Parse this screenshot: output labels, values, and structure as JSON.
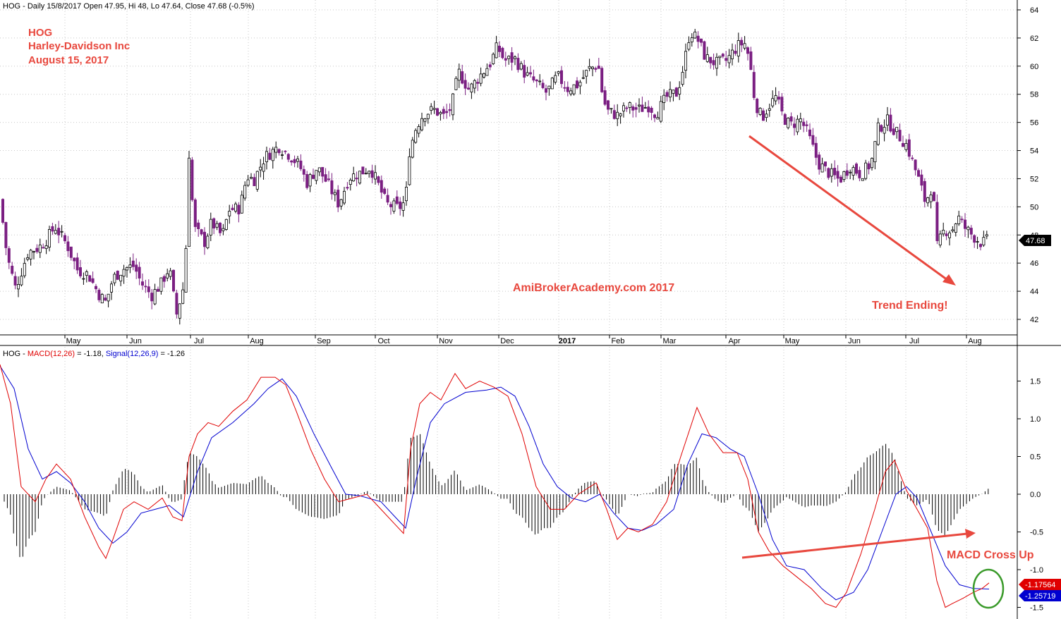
{
  "header": {
    "price_line": "HOG - Daily 15/8/2017 Open 47.95, Hi 48, Lo 47.64, Close 47.68 (-0.5%)",
    "macd_prefix": "HOG - ",
    "macd_label": "MACD(12,26)",
    "macd_value": " = -1.18, ",
    "signal_label": "Signal(12,26,9)",
    "signal_value": " = -1.26"
  },
  "title_block": {
    "ticker": "HOG",
    "company": "Harley-Davidson Inc",
    "date": "August 15, 2017"
  },
  "watermark": "AmiBrokerAcademy.com  2017",
  "annotations": {
    "trend_ending": "Trend Ending!",
    "macd_cross_up": "MACD Cross Up"
  },
  "badges": {
    "price_last": "47.68",
    "macd_last": "-1.17564",
    "signal_last": "-1.25719"
  },
  "colors": {
    "up_candle": "#000000",
    "down_candle": "#7b1f82",
    "macd_line": "#e00000",
    "signal_line": "#0000d0",
    "histogram": "#000000",
    "annotation": "#e8483e",
    "circle": "#3a9a2a",
    "grid": "#c8c8c8"
  },
  "chart_data": [
    {
      "type": "candlestick",
      "title": "HOG - Daily",
      "x_labels": [
        "May",
        "Jun",
        "Jul",
        "Aug",
        "Sep",
        "Oct",
        "Nov",
        "Dec",
        "2017",
        "Feb",
        "Mar",
        "Apr",
        "May",
        "Jun",
        "Jul",
        "Aug"
      ],
      "y_ticks": [
        42,
        44,
        46,
        48,
        50,
        52,
        54,
        56,
        58,
        60,
        62,
        64
      ],
      "ylim": [
        41,
        64.8
      ],
      "last_close": 47.68,
      "close_path": [
        [
          0,
          50.5
        ],
        [
          10,
          46.5
        ],
        [
          22,
          44.2
        ],
        [
          40,
          46.8
        ],
        [
          55,
          47.1
        ],
        [
          65,
          47.6
        ],
        [
          78,
          48.6
        ],
        [
          95,
          47.3
        ],
        [
          110,
          45.5
        ],
        [
          125,
          45.2
        ],
        [
          140,
          43.8
        ],
        [
          150,
          43.2
        ],
        [
          160,
          44.9
        ],
        [
          175,
          45.6
        ],
        [
          190,
          45.8
        ],
        [
          200,
          44.6
        ],
        [
          215,
          43.7
        ],
        [
          228,
          44.5
        ],
        [
          240,
          45.7
        ],
        [
          250,
          42.3
        ],
        [
          262,
          44.7
        ],
        [
          268,
          53.8
        ],
        [
          275,
          48.5
        ],
        [
          290,
          47.5
        ],
        [
          300,
          48.9
        ],
        [
          315,
          47.9
        ],
        [
          325,
          49.8
        ],
        [
          340,
          49.9
        ],
        [
          350,
          52.2
        ],
        [
          360,
          51.9
        ],
        [
          375,
          53.5
        ],
        [
          395,
          54.3
        ],
        [
          410,
          53.7
        ],
        [
          425,
          52.9
        ],
        [
          435,
          51.7
        ],
        [
          450,
          52.8
        ],
        [
          465,
          51.6
        ],
        [
          480,
          50.2
        ],
        [
          495,
          52.1
        ],
        [
          510,
          52.4
        ],
        [
          525,
          52.8
        ],
        [
          535,
          51.7
        ],
        [
          548,
          50.2
        ],
        [
          565,
          49.9
        ],
        [
          575,
          50.4
        ],
        [
          580,
          53.9
        ],
        [
          590,
          55.7
        ],
        [
          600,
          56.6
        ],
        [
          615,
          56.9
        ],
        [
          630,
          56.4
        ],
        [
          640,
          57.1
        ],
        [
          650,
          59.6
        ],
        [
          665,
          58.3
        ],
        [
          680,
          59.3
        ],
        [
          695,
          60.2
        ],
        [
          705,
          61.4
        ],
        [
          715,
          60.4
        ],
        [
          730,
          60.5
        ],
        [
          745,
          59.4
        ],
        [
          760,
          58.8
        ],
        [
          775,
          58.1
        ],
        [
          790,
          59.3
        ],
        [
          805,
          58.4
        ],
        [
          820,
          58.7
        ],
        [
          835,
          59.8
        ],
        [
          848,
          60.1
        ],
        [
          855,
          57.6
        ],
        [
          862,
          56.8
        ],
        [
          875,
          56.5
        ],
        [
          890,
          57.1
        ],
        [
          905,
          56.9
        ],
        [
          920,
          57.2
        ],
        [
          930,
          56.6
        ],
        [
          945,
          57.8
        ],
        [
          960,
          58.1
        ],
        [
          970,
          60.2
        ],
        [
          978,
          62.5
        ],
        [
          990,
          61.8
        ],
        [
          1000,
          60.6
        ],
        [
          1015,
          60.2
        ],
        [
          1030,
          60.4
        ],
        [
          1045,
          61.4
        ],
        [
          1055,
          61.7
        ],
        [
          1062,
          60.6
        ],
        [
          1070,
          57.5
        ],
        [
          1080,
          56.3
        ],
        [
          1090,
          57.2
        ],
        [
          1100,
          57.8
        ],
        [
          1110,
          56.4
        ],
        [
          1120,
          55.8
        ],
        [
          1135,
          56.2
        ],
        [
          1145,
          55.2
        ],
        [
          1160,
          53.1
        ],
        [
          1175,
          52.4
        ],
        [
          1190,
          51.9
        ],
        [
          1205,
          52.9
        ],
        [
          1220,
          52.3
        ],
        [
          1235,
          53.1
        ],
        [
          1245,
          55.6
        ],
        [
          1258,
          56.1
        ],
        [
          1270,
          55.3
        ],
        [
          1285,
          54.4
        ],
        [
          1300,
          52.3
        ],
        [
          1312,
          50.3
        ],
        [
          1322,
          51.6
        ],
        [
          1328,
          47.1
        ],
        [
          1338,
          48.3
        ],
        [
          1350,
          48.4
        ],
        [
          1358,
          49.3
        ],
        [
          1368,
          48.5
        ],
        [
          1380,
          47.9
        ],
        [
          1392,
          47.4
        ],
        [
          1402,
          47.68
        ]
      ]
    },
    {
      "type": "line",
      "title": "HOG - MACD(12,26), Signal(12,26,9)",
      "y_ticks": [
        -1.5,
        -1.0,
        -0.5,
        0.0,
        0.5,
        1.0,
        1.5
      ],
      "ylim": [
        -1.62,
        1.72
      ],
      "series": [
        {
          "name": "MACD(12,26)",
          "last": -1.17564,
          "points": [
            [
              0,
              1.72
            ],
            [
              15,
              1.2
            ],
            [
              30,
              0.1
            ],
            [
              50,
              -0.1
            ],
            [
              65,
              0.2
            ],
            [
              80,
              0.4
            ],
            [
              100,
              0.2
            ],
            [
              120,
              -0.3
            ],
            [
              140,
              -0.7
            ],
            [
              150,
              -0.85
            ],
            [
              160,
              -0.6
            ],
            [
              175,
              -0.2
            ],
            [
              190,
              -0.1
            ],
            [
              210,
              -0.2
            ],
            [
              230,
              -0.05
            ],
            [
              245,
              -0.3
            ],
            [
              258,
              -0.35
            ],
            [
              268,
              0.5
            ],
            [
              280,
              0.8
            ],
            [
              295,
              0.95
            ],
            [
              310,
              0.9
            ],
            [
              330,
              1.1
            ],
            [
              350,
              1.25
            ],
            [
              370,
              1.55
            ],
            [
              390,
              1.55
            ],
            [
              405,
              1.45
            ],
            [
              420,
              1.1
            ],
            [
              440,
              0.6
            ],
            [
              460,
              0.2
            ],
            [
              480,
              -0.1
            ],
            [
              500,
              -0.05
            ],
            [
              520,
              0.0
            ],
            [
              540,
              -0.2
            ],
            [
              560,
              -0.4
            ],
            [
              572,
              -0.52
            ],
            [
              582,
              0.6
            ],
            [
              595,
              1.2
            ],
            [
              610,
              1.35
            ],
            [
              625,
              1.25
            ],
            [
              645,
              1.6
            ],
            [
              660,
              1.4
            ],
            [
              680,
              1.5
            ],
            [
              700,
              1.42
            ],
            [
              720,
              1.3
            ],
            [
              740,
              0.8
            ],
            [
              760,
              0.1
            ],
            [
              780,
              -0.2
            ],
            [
              800,
              -0.2
            ],
            [
              820,
              0.0
            ],
            [
              845,
              0.15
            ],
            [
              860,
              -0.2
            ],
            [
              875,
              -0.6
            ],
            [
              890,
              -0.45
            ],
            [
              905,
              -0.5
            ],
            [
              925,
              -0.4
            ],
            [
              945,
              -0.1
            ],
            [
              965,
              0.5
            ],
            [
              988,
              1.15
            ],
            [
              1005,
              0.8
            ],
            [
              1025,
              0.55
            ],
            [
              1045,
              0.55
            ],
            [
              1060,
              0.2
            ],
            [
              1075,
              -0.5
            ],
            [
              1090,
              -0.75
            ],
            [
              1110,
              -0.95
            ],
            [
              1130,
              -1.1
            ],
            [
              1150,
              -1.25
            ],
            [
              1170,
              -1.45
            ],
            [
              1185,
              -1.5
            ],
            [
              1200,
              -1.3
            ],
            [
              1220,
              -0.8
            ],
            [
              1240,
              -0.2
            ],
            [
              1255,
              0.3
            ],
            [
              1268,
              0.45
            ],
            [
              1285,
              0.05
            ],
            [
              1300,
              -0.2
            ],
            [
              1315,
              -0.45
            ],
            [
              1328,
              -1.15
            ],
            [
              1340,
              -1.5
            ],
            [
              1350,
              -1.45
            ],
            [
              1365,
              -1.38
            ],
            [
              1380,
              -1.3
            ],
            [
              1392,
              -1.25
            ],
            [
              1402,
              -1.17564
            ]
          ]
        },
        {
          "name": "Signal(12,26,9)",
          "last": -1.25719,
          "points": [
            [
              0,
              1.7
            ],
            [
              20,
              1.4
            ],
            [
              40,
              0.6
            ],
            [
              60,
              0.2
            ],
            [
              80,
              0.3
            ],
            [
              100,
              0.15
            ],
            [
              120,
              -0.1
            ],
            [
              140,
              -0.45
            ],
            [
              160,
              -0.65
            ],
            [
              180,
              -0.5
            ],
            [
              200,
              -0.25
            ],
            [
              220,
              -0.2
            ],
            [
              240,
              -0.15
            ],
            [
              260,
              -0.3
            ],
            [
              280,
              0.3
            ],
            [
              300,
              0.75
            ],
            [
              330,
              0.95
            ],
            [
              360,
              1.2
            ],
            [
              380,
              1.4
            ],
            [
              400,
              1.53
            ],
            [
              420,
              1.3
            ],
            [
              445,
              0.8
            ],
            [
              470,
              0.35
            ],
            [
              490,
              0.0
            ],
            [
              510,
              -0.02
            ],
            [
              540,
              -0.1
            ],
            [
              560,
              -0.3
            ],
            [
              575,
              -0.45
            ],
            [
              590,
              0.2
            ],
            [
              610,
              0.95
            ],
            [
              630,
              1.2
            ],
            [
              660,
              1.35
            ],
            [
              690,
              1.38
            ],
            [
              710,
              1.42
            ],
            [
              730,
              1.3
            ],
            [
              750,
              0.9
            ],
            [
              770,
              0.4
            ],
            [
              790,
              0.1
            ],
            [
              810,
              -0.05
            ],
            [
              830,
              -0.1
            ],
            [
              850,
              0.0
            ],
            [
              870,
              -0.25
            ],
            [
              890,
              -0.45
            ],
            [
              910,
              -0.48
            ],
            [
              930,
              -0.4
            ],
            [
              955,
              -0.2
            ],
            [
              975,
              0.4
            ],
            [
              995,
              0.8
            ],
            [
              1015,
              0.75
            ],
            [
              1035,
              0.6
            ],
            [
              1055,
              0.5
            ],
            [
              1075,
              0.0
            ],
            [
              1095,
              -0.6
            ],
            [
              1115,
              -0.95
            ],
            [
              1140,
              -1.0
            ],
            [
              1165,
              -1.25
            ],
            [
              1185,
              -1.4
            ],
            [
              1210,
              -1.3
            ],
            [
              1230,
              -1.0
            ],
            [
              1250,
              -0.5
            ],
            [
              1270,
              0.0
            ],
            [
              1285,
              0.1
            ],
            [
              1300,
              -0.05
            ],
            [
              1320,
              -0.5
            ],
            [
              1340,
              -0.95
            ],
            [
              1360,
              -1.2
            ],
            [
              1380,
              -1.25
            ],
            [
              1402,
              -1.25719
            ]
          ]
        }
      ]
    }
  ]
}
